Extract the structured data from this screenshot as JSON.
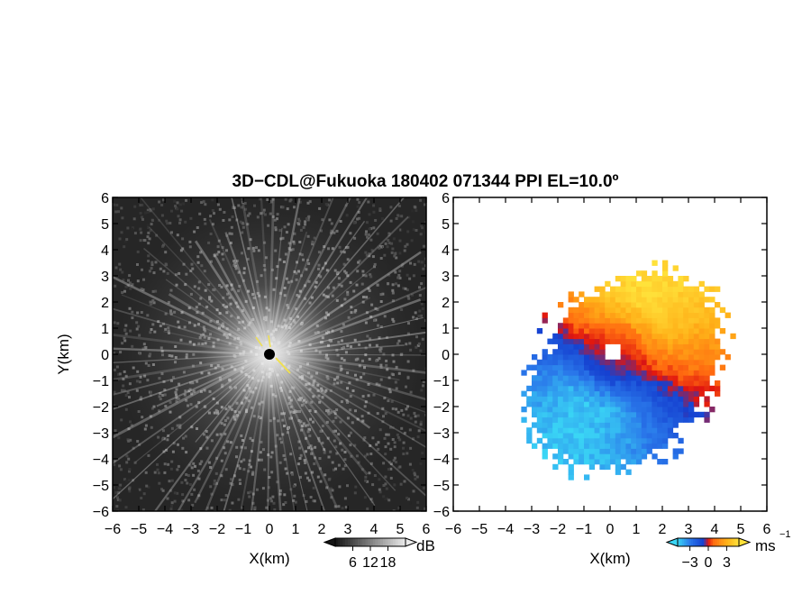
{
  "title": "3D−CDL@Fukuoka 180402 071344 PPI EL=10.0º",
  "chart_data": [
    {
      "type": "heatmap",
      "panel": "left",
      "quantity": "reflectivity (grayscale)",
      "xlabel": "X(km)",
      "ylabel": "Y(km)",
      "xlim": [
        -6,
        6
      ],
      "ylim": [
        -6,
        6
      ],
      "x_ticks": [
        "−6",
        "−5",
        "−4",
        "−3",
        "−2",
        "−1",
        "0",
        "1",
        "2",
        "3",
        "4",
        "5",
        "6"
      ],
      "y_ticks": [
        "6",
        "5",
        "4",
        "3",
        "2",
        "1",
        "0",
        "−1",
        "−2",
        "−3",
        "−4",
        "−5",
        "−6"
      ],
      "colorbar": {
        "unit": "dB",
        "tick_labels": [
          "6",
          "12",
          "18"
        ],
        "tick_values": [
          6,
          12,
          18
        ],
        "range": [
          0,
          24
        ]
      },
      "colors": {
        "background": "#262626",
        "center_dot": "#000000",
        "spoke": "#e6e6e6",
        "marker": "#f0e050"
      }
    },
    {
      "type": "heatmap",
      "panel": "right",
      "quantity": "Doppler velocity",
      "xlabel": "X(km)",
      "ylabel": "Y(km)",
      "xlim": [
        -6,
        6
      ],
      "ylim": [
        -6,
        6
      ],
      "x_ticks": [
        "−6",
        "−5",
        "−4",
        "−3",
        "−2",
        "−1",
        "0",
        "1",
        "2",
        "3",
        "4",
        "5",
        "6"
      ],
      "y_ticks": [
        "6",
        "5",
        "4",
        "3",
        "2",
        "1",
        "0",
        "−1",
        "−2",
        "−3",
        "−4",
        "−5",
        "−6"
      ],
      "colorbar": {
        "unit": "ms",
        "unit_exponent": "−1",
        "tick_labels": [
          "−3",
          "0",
          "3"
        ],
        "tick_values": [
          -3,
          0,
          3
        ],
        "range": [
          -5,
          5
        ]
      },
      "colors": {
        "neg_far": "#3ad6f5",
        "neg_mid": "#2a78ea",
        "neg_near": "#1540d0",
        "zero": "#e0140f",
        "pos_near": "#ff6a10",
        "pos_mid": "#ffb018",
        "pos_far": "#ffe23a",
        "background": "#ffffff"
      }
    }
  ]
}
